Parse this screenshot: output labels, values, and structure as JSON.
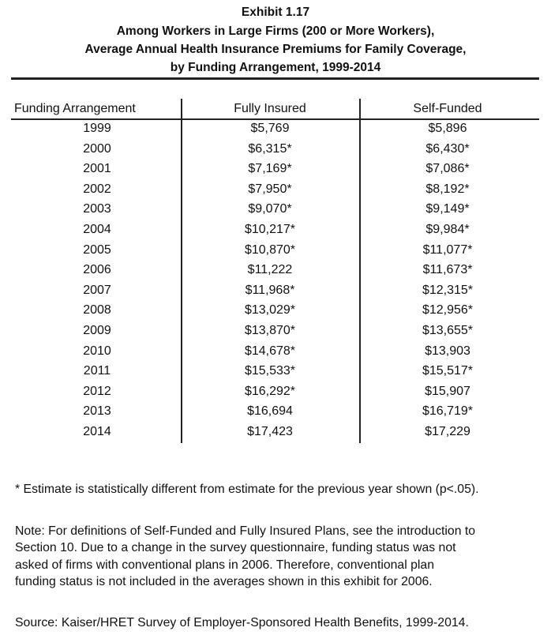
{
  "header": {
    "title": [
      "Exhibit 1.17",
      "Among Workers in Large Firms (200 or More Workers),",
      "Average Annual Health Insurance Premiums for Family Coverage,",
      "by Funding Arrangement, 1999-2014"
    ]
  },
  "table": {
    "columns": [
      "Funding Arrangement",
      "Fully Insured",
      "Self-Funded"
    ],
    "rows": [
      [
        "1999",
        "$5,769",
        "$5,896"
      ],
      [
        "2000",
        "$6,315*",
        "$6,430*"
      ],
      [
        "2001",
        "$7,169*",
        "$7,086*"
      ],
      [
        "2002",
        "$7,950*",
        "$8,192*"
      ],
      [
        "2003",
        "$9,070*",
        "$9,149*"
      ],
      [
        "2004",
        "$10,217*",
        "$9,984*"
      ],
      [
        "2005",
        "$10,870*",
        "$11,077*"
      ],
      [
        "2006",
        "$11,222",
        "$11,673*"
      ],
      [
        "2007",
        "$11,968*",
        "$12,315*"
      ],
      [
        "2008",
        "$13,029*",
        "$12,956*"
      ],
      [
        "2009",
        "$13,870*",
        "$13,655*"
      ],
      [
        "2010",
        "$14,678*",
        "$13,903"
      ],
      [
        "2011",
        "$15,533*",
        "$15,517*"
      ],
      [
        "2012",
        "$16,292*",
        "$15,907"
      ],
      [
        "2013",
        "$16,694",
        "$16,719*"
      ],
      [
        "2014",
        "$17,423",
        "$17,229"
      ]
    ]
  },
  "footnote": "* Estimate is statistically different from estimate for the previous year shown (p<.05).",
  "note": [
    "Note: For definitions of Self-Funded and Fully Insured Plans, see the introduction to",
    "Section 10. Due to a change in the survey questionnaire, funding status was not",
    "asked of firms with conventional plans in 2006.  Therefore, conventional plan",
    "funding status is not included in the averages shown in this exhibit for  2006."
  ],
  "source": "Source: Kaiser/HRET Survey of Employer-Sponsored Health Benefits, 1999-2014."
}
